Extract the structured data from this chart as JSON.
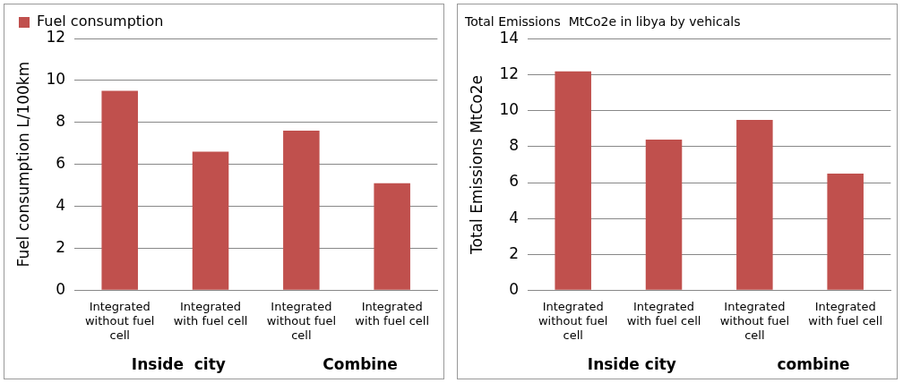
{
  "chart_data": [
    {
      "type": "bar",
      "ylabel": "Fuel consumption L/100km",
      "categories": [
        "Integrated without fuel cell",
        "Integrated with fuel cell",
        "Integrated without fuel cell",
        "Integrated with fuel cell"
      ],
      "series": [
        {
          "name": "Fuel consumption",
          "color": "#c0504d",
          "values": [
            9.5,
            6.6,
            7.6,
            5.1
          ]
        }
      ],
      "ylim": [
        0,
        12
      ],
      "yticks": [
        0,
        2,
        4,
        6,
        8,
        10,
        12
      ],
      "grid": "y",
      "legend": "top",
      "annotations": [
        "Inside  city",
        "Combine"
      ]
    },
    {
      "type": "bar",
      "title": "Total Emissions  MtCo2e in libya by vehicals",
      "ylabel": "Total Emissions MtCo2e",
      "categories": [
        "Integrated without fuel cell",
        "Integrated with fuel cell",
        "Integrated without fuel cell",
        "Integrated with fuel cell"
      ],
      "series": [
        {
          "color": "#c0504d",
          "values": [
            12.2,
            8.4,
            9.5,
            6.5
          ]
        }
      ],
      "ylim": [
        0,
        14
      ],
      "yticks": [
        0,
        2,
        4,
        6,
        8,
        10,
        12,
        14
      ],
      "grid": "y",
      "annotations": [
        "Inside city",
        "combine"
      ]
    }
  ]
}
